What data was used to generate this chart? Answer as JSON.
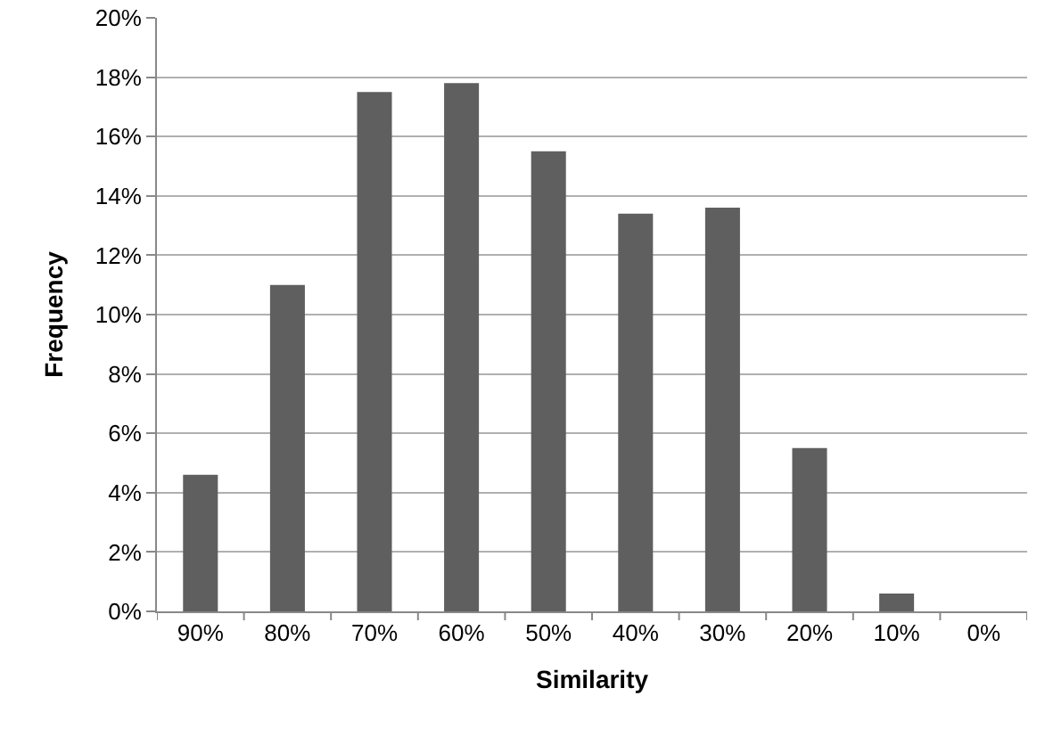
{
  "chart_data": {
    "type": "bar",
    "xlabel": "Similarity",
    "ylabel": "Frequency",
    "categories": [
      "90%",
      "80%",
      "70%",
      "60%",
      "50%",
      "40%",
      "30%",
      "20%",
      "10%",
      "0%"
    ],
    "values": [
      4.6,
      11.0,
      17.5,
      17.8,
      15.5,
      13.4,
      13.6,
      5.5,
      0.6,
      0
    ],
    "color": "#5f5f5f",
    "ylim": [
      0,
      20
    ],
    "yticks": [
      {
        "value": 0,
        "label": "0%"
      },
      {
        "value": 2,
        "label": "2%"
      },
      {
        "value": 4,
        "label": "4%"
      },
      {
        "value": 6,
        "label": "6%"
      },
      {
        "value": 8,
        "label": "8%"
      },
      {
        "value": 10,
        "label": "10%"
      },
      {
        "value": 12,
        "label": "12%"
      },
      {
        "value": 14,
        "label": "14%"
      },
      {
        "value": 16,
        "label": "16%"
      },
      {
        "value": 18,
        "label": "18%"
      },
      {
        "value": 20,
        "label": "20%"
      }
    ],
    "grid": "y"
  }
}
